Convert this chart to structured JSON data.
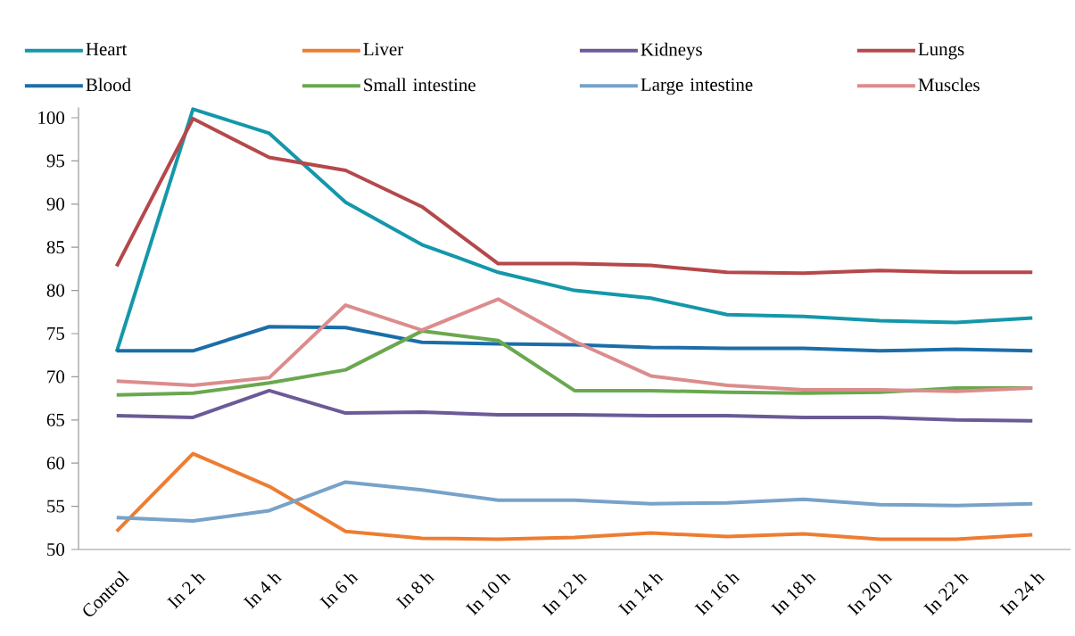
{
  "chart_data": {
    "type": "line",
    "categories": [
      "Control",
      "In 2 h",
      "In 4 h",
      "In 6 h",
      "In 8 h",
      "In 10 h",
      "In 12 h",
      "In 14 h",
      "In 16 h",
      "In 18 h",
      "In 20 h",
      "In 22 h",
      "In 24 h"
    ],
    "series": [
      {
        "name": "Heart",
        "color": "#1497aa",
        "values": [
          72.9,
          101.0,
          98.2,
          90.2,
          85.3,
          82.1,
          80.0,
          79.1,
          77.2,
          77.0,
          76.5,
          76.3,
          76.8
        ]
      },
      {
        "name": "Liver",
        "color": "#ed7d31",
        "values": [
          52.1,
          61.1,
          57.3,
          52.1,
          51.3,
          51.2,
          51.4,
          51.9,
          51.5,
          51.8,
          51.2,
          51.2,
          51.7
        ]
      },
      {
        "name": "Kidneys",
        "color": "#6b5a97",
        "values": [
          65.5,
          65.3,
          68.4,
          65.8,
          65.9,
          65.6,
          65.6,
          65.5,
          65.5,
          65.3,
          65.3,
          65.0,
          64.9
        ]
      },
      {
        "name": "Lungs",
        "color": "#b5484b",
        "values": [
          82.8,
          99.9,
          95.4,
          93.9,
          89.7,
          83.1,
          83.1,
          82.9,
          82.1,
          82.0,
          82.3,
          82.1,
          82.1
        ]
      },
      {
        "name": "Blood",
        "color": "#1b6ea8",
        "values": [
          73.0,
          73.0,
          75.8,
          75.7,
          74.0,
          73.8,
          73.7,
          73.4,
          73.3,
          73.3,
          73.0,
          73.2,
          73.0
        ]
      },
      {
        "name": "Small intestine",
        "color": "#6aa84f",
        "values": [
          67.9,
          68.1,
          69.3,
          70.8,
          75.3,
          74.2,
          68.4,
          68.4,
          68.2,
          68.1,
          68.2,
          68.7,
          68.7
        ]
      },
      {
        "name": "Large intestine",
        "color": "#77a2c9",
        "values": [
          53.7,
          53.3,
          54.5,
          57.8,
          56.9,
          55.7,
          55.7,
          55.3,
          55.4,
          55.8,
          55.2,
          55.1,
          55.3
        ]
      },
      {
        "name": "Muscles",
        "color": "#dc8c8c",
        "values": [
          69.5,
          69.0,
          69.9,
          78.3,
          75.4,
          79.0,
          74.1,
          70.1,
          69.0,
          68.5,
          68.5,
          68.3,
          68.7
        ]
      }
    ],
    "ylim": [
      50,
      101.2
    ],
    "yticks": [
      50,
      55,
      60,
      65,
      70,
      75,
      80,
      85,
      90,
      95,
      100
    ],
    "legend": "top",
    "marker": "none",
    "line_style": "solid",
    "grid": false
  }
}
